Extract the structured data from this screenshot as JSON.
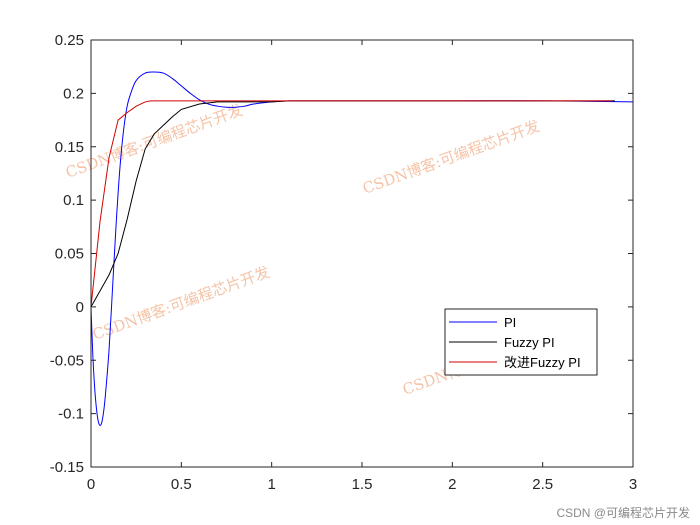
{
  "chart_data": {
    "type": "line",
    "title": "",
    "xlabel": "",
    "ylabel": "",
    "xlim": [
      0,
      3
    ],
    "ylim": [
      -0.15,
      0.25
    ],
    "x_ticks": [
      "0",
      "0.5",
      "1",
      "1.5",
      "2",
      "2.5",
      "3"
    ],
    "y_ticks": [
      "-0.15",
      "-0.1",
      "-0.05",
      "0",
      "0.05",
      "0.1",
      "0.15",
      "0.2",
      "0.25"
    ],
    "x_tick_values": [
      0,
      0.5,
      1,
      1.5,
      2,
      2.5,
      3
    ],
    "y_tick_values": [
      -0.15,
      -0.1,
      -0.05,
      0,
      0.05,
      0.1,
      0.15,
      0.2,
      0.25
    ],
    "grid": false,
    "legend_position": "lower-right",
    "series": [
      {
        "name": "PI",
        "color": "#0000ff",
        "x": [
          0,
          0.01,
          0.02,
          0.03,
          0.04,
          0.05,
          0.06,
          0.07,
          0.08,
          0.1,
          0.12,
          0.14,
          0.16,
          0.18,
          0.2,
          0.22,
          0.25,
          0.3,
          0.35,
          0.4,
          0.45,
          0.5,
          0.55,
          0.6,
          0.65,
          0.7,
          0.75,
          0.8,
          0.85,
          0.9,
          1.0,
          1.1,
          1.5,
          2.0,
          2.5,
          3.0
        ],
        "y": [
          0,
          -0.045,
          -0.075,
          -0.095,
          -0.107,
          -0.111,
          -0.108,
          -0.098,
          -0.082,
          -0.04,
          0.02,
          0.08,
          0.13,
          0.165,
          0.188,
          0.2,
          0.212,
          0.219,
          0.22,
          0.219,
          0.214,
          0.207,
          0.2,
          0.194,
          0.19,
          0.188,
          0.187,
          0.187,
          0.188,
          0.19,
          0.192,
          0.193,
          0.193,
          0.193,
          0.193,
          0.192
        ]
      },
      {
        "name": "Fuzzy PI",
        "color": "#000000",
        "x": [
          0,
          0.05,
          0.1,
          0.15,
          0.2,
          0.25,
          0.3,
          0.35,
          0.4,
          0.45,
          0.5,
          0.6,
          0.7,
          0.8,
          0.9,
          1.0,
          1.1,
          1.5,
          2.0,
          2.5,
          2.9
        ],
        "y": [
          0,
          0.015,
          0.03,
          0.05,
          0.082,
          0.118,
          0.148,
          0.162,
          0.17,
          0.178,
          0.185,
          0.19,
          0.192,
          0.192,
          0.192,
          0.192,
          0.193,
          0.193,
          0.193,
          0.193,
          0.193
        ]
      },
      {
        "name": "改进Fuzzy PI",
        "color": "#d40000",
        "x": [
          0,
          0.05,
          0.1,
          0.15,
          0.2,
          0.25,
          0.3,
          0.33,
          0.5,
          1.0,
          1.5,
          2.0,
          2.5,
          2.88
        ],
        "y": [
          0,
          0.08,
          0.14,
          0.175,
          0.182,
          0.188,
          0.192,
          0.193,
          0.193,
          0.193,
          0.193,
          0.193,
          0.193,
          0.193
        ]
      }
    ],
    "watermark": "CSDN博客:可编程芯片开发",
    "footer": "CSDN @可编程芯片开发"
  }
}
